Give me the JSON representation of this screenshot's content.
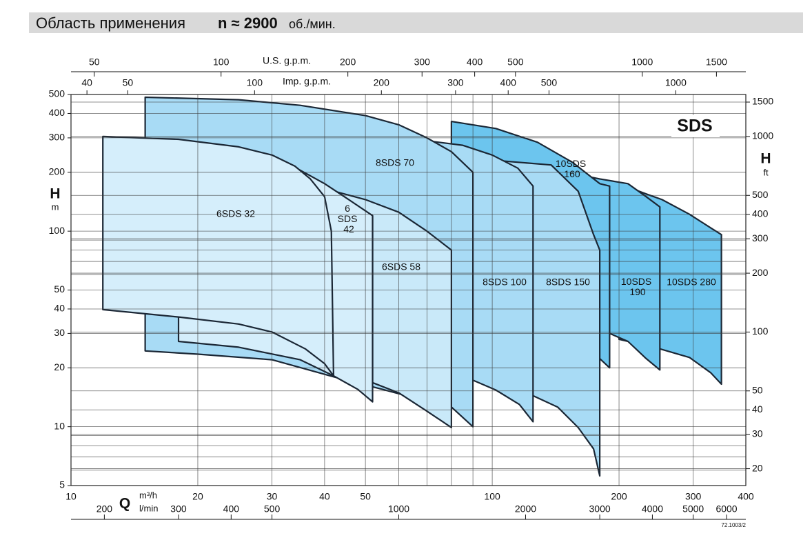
{
  "header": {
    "title": "Область применения",
    "speed": "n ≈ 2900",
    "unit": "об./мин."
  },
  "chart_data": {
    "type": "region",
    "title": "SDS",
    "x_label": "Q",
    "x_unit": "m³/h",
    "y_label": "H",
    "y_unit": "m",
    "xscale": "log",
    "yscale": "log",
    "xlim": [
      10,
      400
    ],
    "xticks": [
      10,
      20,
      30,
      40,
      50,
      100,
      200,
      300,
      400
    ],
    "xminor": [
      60,
      70,
      80,
      90
    ],
    "ylim": [
      5,
      500
    ],
    "yticks": [
      5,
      10,
      20,
      30,
      40,
      50,
      100,
      200,
      300,
      400,
      500
    ],
    "yminor": [
      6,
      7,
      8,
      9,
      60,
      70,
      80,
      90
    ],
    "grid": true,
    "us_gpm_axis": {
      "label": "U.S. g.p.m.",
      "lim": [
        44.03,
        1761.2
      ],
      "ticks": [
        50,
        100,
        200,
        300,
        400,
        500,
        1000,
        1500
      ]
    },
    "imp_gpm_axis": {
      "label": "Imp. g.p.m.",
      "lim": [
        36.66,
        1466.4
      ],
      "ticks": [
        40,
        50,
        100,
        200,
        300,
        400,
        500,
        1000
      ]
    },
    "lmin_axis": {
      "label": "l/min",
      "lim": [
        166.67,
        6666.7
      ],
      "ticks": [
        200,
        300,
        400,
        500,
        1000,
        2000,
        3000,
        4000,
        5000,
        6000
      ]
    },
    "ft_axis": {
      "label": "H",
      "unit": "ft",
      "lim": [
        16.4,
        1640.4
      ],
      "ticks": [
        20,
        30,
        40,
        50,
        100,
        200,
        300,
        400,
        500,
        1000,
        1500
      ]
    },
    "regions": [
      {
        "name": "10SDS 280",
        "color": "#6cc5ee",
        "x": [
          200,
          232,
          253,
          294,
          330,
          350,
          350,
          330,
          294,
          250,
          200
        ],
        "y": [
          175,
          155,
          145,
          122,
          104,
          96,
          16.5,
          18.9,
          22.6,
          25,
          28
        ]
      },
      {
        "name": "10SDS 190",
        "color": "#6cc5ee",
        "x": [
          150,
          180,
          210,
          232,
          250,
          250,
          232,
          210,
          190,
          150
        ],
        "y": [
          200,
          185,
          175,
          150,
          133,
          19.5,
          22.3,
          27.3,
          30,
          30
        ]
      },
      {
        "name": "10SDS 160",
        "color": "#6cc5ee",
        "x": [
          80,
          102,
          128,
          155,
          180,
          190,
          190,
          180,
          80
        ],
        "y": [
          364,
          335,
          285,
          225,
          175,
          170,
          20,
          22.3,
          22.3
        ]
      },
      {
        "name": "8SDS 150",
        "color": "#a8dbf5",
        "x": [
          102,
          138,
          160,
          174,
          180,
          180,
          174,
          160,
          143,
          125,
          110
        ],
        "y": [
          230,
          218,
          160,
          96,
          80,
          5.6,
          7.7,
          9.9,
          12.6,
          14.4,
          14.4
        ]
      },
      {
        "name": "8SDS 100",
        "color": "#a8dbf5",
        "x": [
          70,
          85,
          100,
          115,
          125,
          125,
          116,
          102,
          90,
          70
        ],
        "y": [
          290,
          275,
          245,
          210,
          170,
          10.6,
          13,
          15.4,
          17.3,
          17.3
        ]
      },
      {
        "name": "8SDS 70",
        "color": "#a8dbf5",
        "x": [
          15,
          25,
          35,
          50,
          60,
          70,
          80,
          90,
          90,
          80,
          70,
          55,
          42,
          30,
          20,
          15
        ],
        "y": [
          484,
          470,
          440,
          390,
          350,
          300,
          255,
          200,
          10,
          12.6,
          13.5,
          15.5,
          18,
          22,
          23.5,
          24.4
        ]
      },
      {
        "name": "6SDS 58",
        "color": "#c9e9f9",
        "x": [
          40,
          50,
          60,
          70,
          80,
          80,
          70,
          60,
          52,
          52,
          42
        ],
        "y": [
          165,
          145,
          125,
          100,
          80,
          9.9,
          12,
          14.9,
          16.8,
          120,
          140
        ]
      },
      {
        "name": "6 SDS 42",
        "color": "#d5eefb",
        "x": [
          18,
          30,
          35,
          40,
          45,
          52,
          52,
          48,
          42,
          35,
          25,
          18
        ],
        "y": [
          250,
          240,
          205,
          175,
          148,
          120,
          13.4,
          15.5,
          18.2,
          22,
          25.5,
          27.3
        ]
      },
      {
        "name": "6SDS 32",
        "color": "#d5eefb",
        "x": [
          11.9,
          18,
          25,
          30,
          34,
          37,
          40,
          41.5,
          42,
          40,
          36,
          30,
          25,
          18,
          11.9
        ],
        "y": [
          305,
          295,
          270,
          245,
          215,
          185,
          150,
          100,
          18.2,
          21,
          25,
          30.5,
          33.5,
          36.4,
          39.7
        ]
      }
    ],
    "note": "72.1003/2"
  }
}
